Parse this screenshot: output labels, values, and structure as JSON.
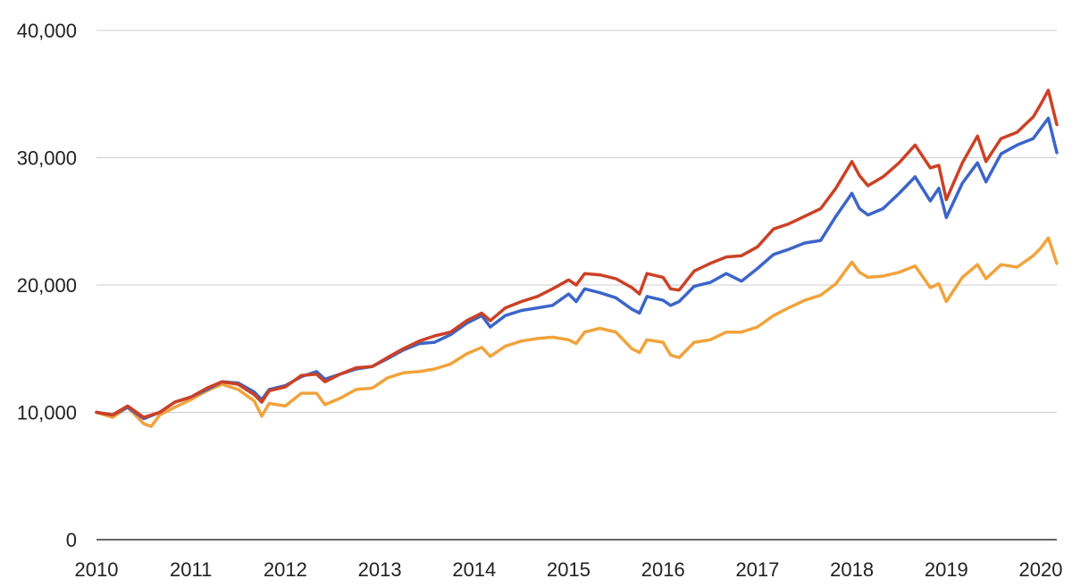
{
  "chart_data": {
    "type": "line",
    "title": "",
    "xlabel": "",
    "ylabel": "",
    "xlim": [
      2010,
      2020.17
    ],
    "ylim": [
      0,
      40000
    ],
    "x_ticks": [
      "2010",
      "2011",
      "2012",
      "2013",
      "2014",
      "2015",
      "2016",
      "2017",
      "2018",
      "2019",
      "2020"
    ],
    "y_ticks": [
      "0",
      "10,000",
      "20,000",
      "30,000",
      "40,000"
    ],
    "grid": true,
    "legend": "none",
    "series": [
      {
        "color": "#cc4125",
        "points": [
          [
            2010.0,
            10000
          ],
          [
            2010.17,
            9800
          ],
          [
            2010.33,
            10500
          ],
          [
            2010.5,
            9600
          ],
          [
            2010.67,
            10000
          ],
          [
            2010.83,
            10800
          ],
          [
            2011.0,
            11200
          ],
          [
            2011.17,
            11900
          ],
          [
            2011.33,
            12400
          ],
          [
            2011.5,
            12200
          ],
          [
            2011.67,
            11400
          ],
          [
            2011.75,
            10800
          ],
          [
            2011.83,
            11700
          ],
          [
            2012.0,
            12000
          ],
          [
            2012.17,
            12900
          ],
          [
            2012.33,
            13000
          ],
          [
            2012.42,
            12400
          ],
          [
            2012.58,
            13000
          ],
          [
            2012.75,
            13500
          ],
          [
            2012.92,
            13600
          ],
          [
            2013.08,
            14300
          ],
          [
            2013.25,
            15000
          ],
          [
            2013.42,
            15600
          ],
          [
            2013.58,
            16000
          ],
          [
            2013.75,
            16300
          ],
          [
            2013.92,
            17200
          ],
          [
            2014.08,
            17800
          ],
          [
            2014.17,
            17200
          ],
          [
            2014.33,
            18200
          ],
          [
            2014.5,
            18700
          ],
          [
            2014.67,
            19100
          ],
          [
            2014.83,
            19700
          ],
          [
            2015.0,
            20400
          ],
          [
            2015.08,
            20000
          ],
          [
            2015.17,
            20900
          ],
          [
            2015.33,
            20800
          ],
          [
            2015.5,
            20500
          ],
          [
            2015.67,
            19800
          ],
          [
            2015.75,
            19300
          ],
          [
            2015.83,
            20900
          ],
          [
            2016.0,
            20600
          ],
          [
            2016.08,
            19700
          ],
          [
            2016.17,
            19600
          ],
          [
            2016.33,
            21100
          ],
          [
            2016.5,
            21700
          ],
          [
            2016.67,
            22200
          ],
          [
            2016.83,
            22300
          ],
          [
            2017.0,
            23000
          ],
          [
            2017.17,
            24400
          ],
          [
            2017.33,
            24800
          ],
          [
            2017.5,
            25400
          ],
          [
            2017.67,
            26000
          ],
          [
            2017.83,
            27600
          ],
          [
            2018.0,
            29700
          ],
          [
            2018.08,
            28600
          ],
          [
            2018.17,
            27800
          ],
          [
            2018.33,
            28500
          ],
          [
            2018.5,
            29600
          ],
          [
            2018.67,
            31000
          ],
          [
            2018.83,
            29200
          ],
          [
            2018.92,
            29400
          ],
          [
            2019.0,
            26700
          ],
          [
            2019.17,
            29600
          ],
          [
            2019.33,
            31700
          ],
          [
            2019.42,
            29700
          ],
          [
            2019.58,
            31500
          ],
          [
            2019.75,
            32000
          ],
          [
            2019.92,
            33200
          ],
          [
            2020.0,
            34200
          ],
          [
            2020.08,
            35300
          ],
          [
            2020.17,
            32600
          ]
        ]
      },
      {
        "color": "#3c65c8",
        "points": [
          [
            2010.0,
            10000
          ],
          [
            2010.17,
            9800
          ],
          [
            2010.33,
            10400
          ],
          [
            2010.5,
            9500
          ],
          [
            2010.67,
            10000
          ],
          [
            2010.83,
            10800
          ],
          [
            2011.0,
            11200
          ],
          [
            2011.17,
            11800
          ],
          [
            2011.33,
            12400
          ],
          [
            2011.5,
            12300
          ],
          [
            2011.67,
            11600
          ],
          [
            2011.75,
            11000
          ],
          [
            2011.83,
            11800
          ],
          [
            2012.0,
            12100
          ],
          [
            2012.17,
            12800
          ],
          [
            2012.33,
            13200
          ],
          [
            2012.42,
            12600
          ],
          [
            2012.58,
            13000
          ],
          [
            2012.75,
            13400
          ],
          [
            2012.92,
            13600
          ],
          [
            2013.08,
            14200
          ],
          [
            2013.25,
            14900
          ],
          [
            2013.42,
            15400
          ],
          [
            2013.58,
            15500
          ],
          [
            2013.75,
            16100
          ],
          [
            2013.92,
            17000
          ],
          [
            2014.08,
            17600
          ],
          [
            2014.17,
            16700
          ],
          [
            2014.33,
            17600
          ],
          [
            2014.5,
            18000
          ],
          [
            2014.67,
            18200
          ],
          [
            2014.83,
            18400
          ],
          [
            2015.0,
            19300
          ],
          [
            2015.08,
            18700
          ],
          [
            2015.17,
            19700
          ],
          [
            2015.33,
            19400
          ],
          [
            2015.5,
            19000
          ],
          [
            2015.67,
            18100
          ],
          [
            2015.75,
            17800
          ],
          [
            2015.83,
            19100
          ],
          [
            2016.0,
            18800
          ],
          [
            2016.08,
            18400
          ],
          [
            2016.17,
            18700
          ],
          [
            2016.33,
            19900
          ],
          [
            2016.5,
            20200
          ],
          [
            2016.67,
            20900
          ],
          [
            2016.83,
            20300
          ],
          [
            2017.0,
            21300
          ],
          [
            2017.17,
            22400
          ],
          [
            2017.33,
            22800
          ],
          [
            2017.5,
            23300
          ],
          [
            2017.67,
            23500
          ],
          [
            2017.83,
            25400
          ],
          [
            2018.0,
            27200
          ],
          [
            2018.08,
            26000
          ],
          [
            2018.17,
            25500
          ],
          [
            2018.33,
            26000
          ],
          [
            2018.5,
            27200
          ],
          [
            2018.67,
            28500
          ],
          [
            2018.83,
            26600
          ],
          [
            2018.92,
            27600
          ],
          [
            2019.0,
            25300
          ],
          [
            2019.17,
            28000
          ],
          [
            2019.33,
            29600
          ],
          [
            2019.42,
            28100
          ],
          [
            2019.58,
            30300
          ],
          [
            2019.75,
            31000
          ],
          [
            2019.92,
            31500
          ],
          [
            2020.0,
            32300
          ],
          [
            2020.08,
            33100
          ],
          [
            2020.17,
            30400
          ]
        ]
      },
      {
        "color": "#f1a33b",
        "points": [
          [
            2010.0,
            10000
          ],
          [
            2010.17,
            9600
          ],
          [
            2010.33,
            10400
          ],
          [
            2010.5,
            9100
          ],
          [
            2010.58,
            8900
          ],
          [
            2010.67,
            9800
          ],
          [
            2010.83,
            10400
          ],
          [
            2011.0,
            11000
          ],
          [
            2011.17,
            11700
          ],
          [
            2011.33,
            12200
          ],
          [
            2011.5,
            11800
          ],
          [
            2011.67,
            10900
          ],
          [
            2011.75,
            9700
          ],
          [
            2011.83,
            10700
          ],
          [
            2012.0,
            10500
          ],
          [
            2012.17,
            11500
          ],
          [
            2012.33,
            11500
          ],
          [
            2012.42,
            10600
          ],
          [
            2012.58,
            11100
          ],
          [
            2012.75,
            11800
          ],
          [
            2012.92,
            11900
          ],
          [
            2013.08,
            12700
          ],
          [
            2013.25,
            13100
          ],
          [
            2013.42,
            13200
          ],
          [
            2013.58,
            13400
          ],
          [
            2013.75,
            13800
          ],
          [
            2013.92,
            14600
          ],
          [
            2014.08,
            15100
          ],
          [
            2014.17,
            14400
          ],
          [
            2014.33,
            15200
          ],
          [
            2014.5,
            15600
          ],
          [
            2014.67,
            15800
          ],
          [
            2014.83,
            15900
          ],
          [
            2015.0,
            15700
          ],
          [
            2015.08,
            15400
          ],
          [
            2015.17,
            16300
          ],
          [
            2015.33,
            16600
          ],
          [
            2015.5,
            16300
          ],
          [
            2015.67,
            15000
          ],
          [
            2015.75,
            14700
          ],
          [
            2015.83,
            15700
          ],
          [
            2016.0,
            15500
          ],
          [
            2016.08,
            14500
          ],
          [
            2016.17,
            14300
          ],
          [
            2016.33,
            15500
          ],
          [
            2016.5,
            15700
          ],
          [
            2016.67,
            16300
          ],
          [
            2016.83,
            16300
          ],
          [
            2017.0,
            16700
          ],
          [
            2017.17,
            17600
          ],
          [
            2017.33,
            18200
          ],
          [
            2017.5,
            18800
          ],
          [
            2017.67,
            19200
          ],
          [
            2017.83,
            20100
          ],
          [
            2018.0,
            21800
          ],
          [
            2018.08,
            21000
          ],
          [
            2018.17,
            20600
          ],
          [
            2018.33,
            20700
          ],
          [
            2018.5,
            21000
          ],
          [
            2018.67,
            21500
          ],
          [
            2018.83,
            19800
          ],
          [
            2018.92,
            20100
          ],
          [
            2019.0,
            18700
          ],
          [
            2019.17,
            20600
          ],
          [
            2019.33,
            21600
          ],
          [
            2019.42,
            20500
          ],
          [
            2019.58,
            21600
          ],
          [
            2019.75,
            21400
          ],
          [
            2019.92,
            22300
          ],
          [
            2020.0,
            22900
          ],
          [
            2020.08,
            23700
          ],
          [
            2020.17,
            21700
          ]
        ]
      }
    ]
  }
}
